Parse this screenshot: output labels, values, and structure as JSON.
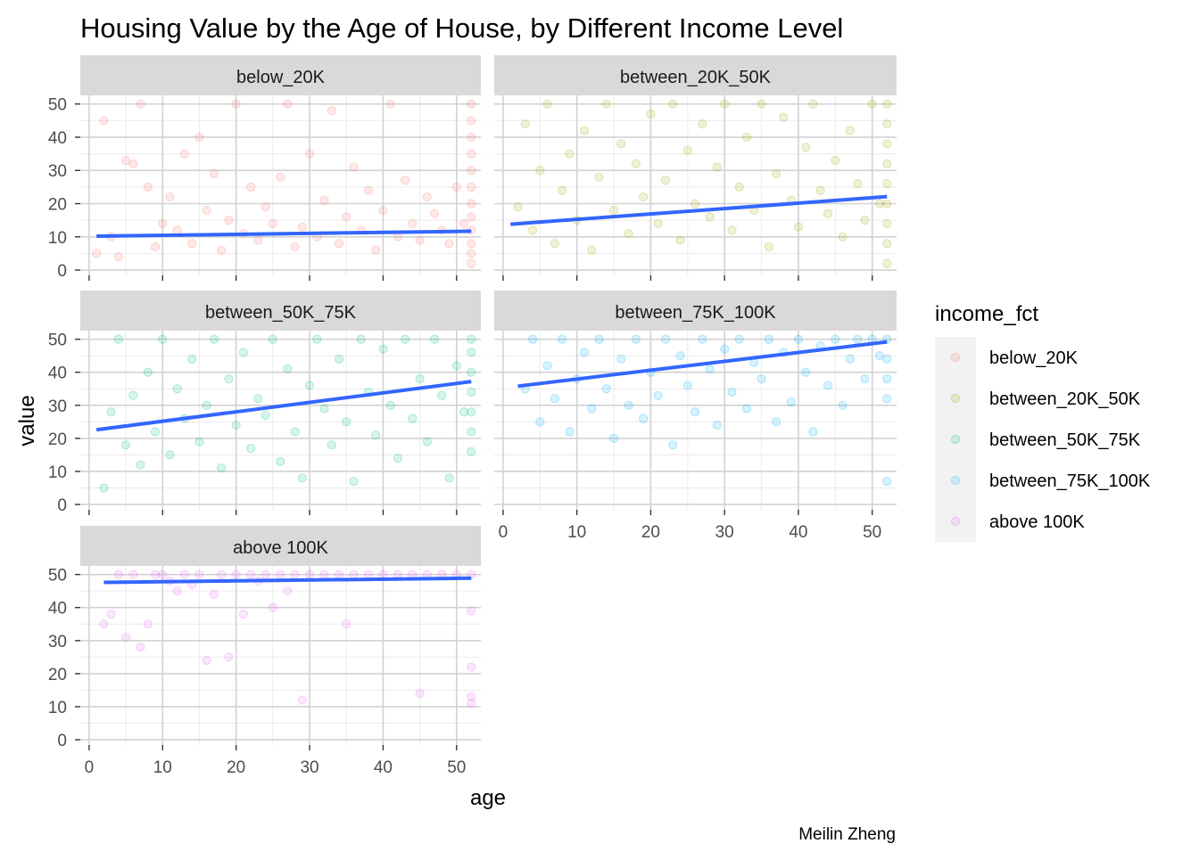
{
  "chart_data": {
    "type": "scatter",
    "title": "Housing Value by the Age of House, by Different Income Level",
    "xlabel": "age",
    "ylabel": "value",
    "caption": "Meilin Zheng",
    "xlim": [
      0,
      52
    ],
    "ylim": [
      0,
      50
    ],
    "x_ticks": [
      0,
      10,
      20,
      30,
      40,
      50
    ],
    "y_ticks": [
      0,
      10,
      20,
      30,
      40,
      50
    ],
    "grid": true,
    "facet_by": "income_fct",
    "legend": {
      "title": "income_fct",
      "position": "right",
      "entries": [
        {
          "label": "below_20K",
          "color": "#F8766D"
        },
        {
          "label": "between_20K_50K",
          "color": "#A3A500"
        },
        {
          "label": "between_50K_75K",
          "color": "#00BF7D"
        },
        {
          "label": "between_75K_100K",
          "color": "#00B0F6"
        },
        {
          "label": "above 100K",
          "color": "#E76BF3"
        }
      ]
    },
    "trend_color": "#3366FF",
    "panels": [
      {
        "strip": "below_20K",
        "color": "#F8766D",
        "trend_line": {
          "x": [
            1,
            52
          ],
          "y": [
            10.2,
            11.7
          ]
        },
        "points": [
          [
            1,
            5
          ],
          [
            2,
            45
          ],
          [
            3,
            10
          ],
          [
            4,
            4
          ],
          [
            5,
            33
          ],
          [
            6,
            32
          ],
          [
            7,
            50
          ],
          [
            8,
            25
          ],
          [
            9,
            7
          ],
          [
            10,
            14
          ],
          [
            11,
            22
          ],
          [
            12,
            12
          ],
          [
            13,
            35
          ],
          [
            14,
            8
          ],
          [
            15,
            40
          ],
          [
            16,
            18
          ],
          [
            17,
            29
          ],
          [
            18,
            6
          ],
          [
            19,
            15
          ],
          [
            20,
            50
          ],
          [
            21,
            11
          ],
          [
            22,
            25
          ],
          [
            23,
            9
          ],
          [
            24,
            19
          ],
          [
            25,
            14
          ],
          [
            26,
            28
          ],
          [
            27,
            50
          ],
          [
            28,
            7
          ],
          [
            29,
            13
          ],
          [
            30,
            35
          ],
          [
            31,
            10
          ],
          [
            32,
            21
          ],
          [
            33,
            48
          ],
          [
            34,
            8
          ],
          [
            35,
            16
          ],
          [
            36,
            31
          ],
          [
            37,
            12
          ],
          [
            38,
            24
          ],
          [
            39,
            6
          ],
          [
            40,
            18
          ],
          [
            41,
            50
          ],
          [
            42,
            10
          ],
          [
            43,
            27
          ],
          [
            44,
            14
          ],
          [
            45,
            9
          ],
          [
            46,
            22
          ],
          [
            47,
            17
          ],
          [
            48,
            12
          ],
          [
            49,
            8
          ],
          [
            50,
            25
          ],
          [
            51,
            14
          ],
          [
            52,
            2
          ],
          [
            52,
            5
          ],
          [
            52,
            8
          ],
          [
            52,
            12
          ],
          [
            52,
            16
          ],
          [
            52,
            20
          ],
          [
            52,
            25
          ],
          [
            52,
            30
          ],
          [
            52,
            35
          ],
          [
            52,
            40
          ],
          [
            52,
            45
          ],
          [
            52,
            50
          ]
        ]
      },
      {
        "strip": "between_20K_50K",
        "color": "#A3A500",
        "trend_line": {
          "x": [
            1,
            52
          ],
          "y": [
            13.8,
            22.1
          ]
        },
        "points": [
          [
            2,
            19
          ],
          [
            3,
            44
          ],
          [
            4,
            12
          ],
          [
            5,
            30
          ],
          [
            6,
            50
          ],
          [
            7,
            8
          ],
          [
            8,
            24
          ],
          [
            9,
            35
          ],
          [
            10,
            15
          ],
          [
            11,
            42
          ],
          [
            12,
            6
          ],
          [
            13,
            28
          ],
          [
            14,
            50
          ],
          [
            15,
            18
          ],
          [
            16,
            38
          ],
          [
            17,
            11
          ],
          [
            18,
            32
          ],
          [
            19,
            22
          ],
          [
            20,
            47
          ],
          [
            21,
            14
          ],
          [
            22,
            27
          ],
          [
            23,
            50
          ],
          [
            24,
            9
          ],
          [
            25,
            36
          ],
          [
            26,
            20
          ],
          [
            27,
            44
          ],
          [
            28,
            16
          ],
          [
            29,
            31
          ],
          [
            30,
            50
          ],
          [
            31,
            12
          ],
          [
            32,
            25
          ],
          [
            33,
            40
          ],
          [
            34,
            18
          ],
          [
            35,
            50
          ],
          [
            36,
            7
          ],
          [
            37,
            29
          ],
          [
            38,
            46
          ],
          [
            39,
            21
          ],
          [
            40,
            13
          ],
          [
            41,
            37
          ],
          [
            42,
            50
          ],
          [
            43,
            24
          ],
          [
            44,
            17
          ],
          [
            45,
            33
          ],
          [
            46,
            10
          ],
          [
            47,
            42
          ],
          [
            48,
            26
          ],
          [
            49,
            15
          ],
          [
            50,
            50
          ],
          [
            51,
            20
          ],
          [
            52,
            2
          ],
          [
            52,
            8
          ],
          [
            52,
            14
          ],
          [
            52,
            20
          ],
          [
            52,
            26
          ],
          [
            52,
            32
          ],
          [
            52,
            38
          ],
          [
            52,
            44
          ],
          [
            52,
            50
          ]
        ]
      },
      {
        "strip": "between_50K_75K",
        "color": "#00BF7D",
        "trend_line": {
          "x": [
            1,
            52
          ],
          "y": [
            22.6,
            37.2
          ]
        },
        "points": [
          [
            2,
            5
          ],
          [
            3,
            28
          ],
          [
            4,
            50
          ],
          [
            5,
            18
          ],
          [
            6,
            33
          ],
          [
            7,
            12
          ],
          [
            8,
            40
          ],
          [
            9,
            22
          ],
          [
            10,
            50
          ],
          [
            11,
            15
          ],
          [
            12,
            35
          ],
          [
            13,
            26
          ],
          [
            14,
            44
          ],
          [
            15,
            19
          ],
          [
            16,
            30
          ],
          [
            17,
            50
          ],
          [
            18,
            11
          ],
          [
            19,
            38
          ],
          [
            20,
            24
          ],
          [
            21,
            46
          ],
          [
            22,
            17
          ],
          [
            23,
            32
          ],
          [
            24,
            27
          ],
          [
            25,
            50
          ],
          [
            26,
            13
          ],
          [
            27,
            41
          ],
          [
            28,
            22
          ],
          [
            29,
            8
          ],
          [
            30,
            36
          ],
          [
            31,
            50
          ],
          [
            32,
            29
          ],
          [
            33,
            18
          ],
          [
            34,
            44
          ],
          [
            35,
            25
          ],
          [
            36,
            7
          ],
          [
            37,
            50
          ],
          [
            38,
            34
          ],
          [
            39,
            21
          ],
          [
            40,
            47
          ],
          [
            41,
            30
          ],
          [
            42,
            14
          ],
          [
            43,
            50
          ],
          [
            44,
            26
          ],
          [
            45,
            38
          ],
          [
            46,
            19
          ],
          [
            47,
            50
          ],
          [
            48,
            33
          ],
          [
            49,
            8
          ],
          [
            50,
            42
          ],
          [
            51,
            28
          ],
          [
            52,
            16
          ],
          [
            52,
            22
          ],
          [
            52,
            28
          ],
          [
            52,
            34
          ],
          [
            52,
            40
          ],
          [
            52,
            46
          ],
          [
            52,
            50
          ]
        ]
      },
      {
        "strip": "between_75K_100K",
        "color": "#00B0F6",
        "trend_line": {
          "x": [
            2,
            52
          ],
          "y": [
            35.8,
            49.2
          ]
        },
        "points": [
          [
            3,
            35
          ],
          [
            4,
            50
          ],
          [
            5,
            25
          ],
          [
            6,
            42
          ],
          [
            7,
            32
          ],
          [
            8,
            50
          ],
          [
            9,
            22
          ],
          [
            10,
            38
          ],
          [
            11,
            46
          ],
          [
            12,
            29
          ],
          [
            13,
            50
          ],
          [
            14,
            35
          ],
          [
            15,
            20
          ],
          [
            16,
            44
          ],
          [
            17,
            30
          ],
          [
            18,
            50
          ],
          [
            19,
            26
          ],
          [
            20,
            40
          ],
          [
            21,
            33
          ],
          [
            22,
            50
          ],
          [
            23,
            18
          ],
          [
            24,
            45
          ],
          [
            25,
            36
          ],
          [
            26,
            28
          ],
          [
            27,
            50
          ],
          [
            28,
            41
          ],
          [
            29,
            24
          ],
          [
            30,
            47
          ],
          [
            31,
            34
          ],
          [
            32,
            50
          ],
          [
            33,
            29
          ],
          [
            34,
            43
          ],
          [
            35,
            38
          ],
          [
            36,
            50
          ],
          [
            37,
            25
          ],
          [
            38,
            46
          ],
          [
            39,
            31
          ],
          [
            40,
            50
          ],
          [
            41,
            40
          ],
          [
            42,
            22
          ],
          [
            43,
            48
          ],
          [
            44,
            36
          ],
          [
            45,
            50
          ],
          [
            46,
            30
          ],
          [
            47,
            44
          ],
          [
            48,
            50
          ],
          [
            49,
            38
          ],
          [
            50,
            50
          ],
          [
            51,
            45
          ],
          [
            52,
            7
          ],
          [
            52,
            32
          ],
          [
            52,
            38
          ],
          [
            52,
            44
          ],
          [
            52,
            50
          ]
        ]
      },
      {
        "strip": "above 100K",
        "color": "#E76BF3",
        "trend_line": {
          "x": [
            2,
            52
          ],
          "y": [
            47.6,
            48.9
          ]
        },
        "points": [
          [
            2,
            35
          ],
          [
            3,
            38
          ],
          [
            4,
            50
          ],
          [
            5,
            31
          ],
          [
            6,
            50
          ],
          [
            7,
            28
          ],
          [
            8,
            35
          ],
          [
            9,
            50
          ],
          [
            10,
            50
          ],
          [
            11,
            48
          ],
          [
            12,
            45
          ],
          [
            13,
            50
          ],
          [
            14,
            47
          ],
          [
            15,
            50
          ],
          [
            16,
            24
          ],
          [
            17,
            44
          ],
          [
            18,
            50
          ],
          [
            19,
            25
          ],
          [
            20,
            50
          ],
          [
            21,
            38
          ],
          [
            22,
            50
          ],
          [
            23,
            48
          ],
          [
            24,
            50
          ],
          [
            25,
            40
          ],
          [
            26,
            50
          ],
          [
            27,
            45
          ],
          [
            28,
            50
          ],
          [
            29,
            12
          ],
          [
            30,
            50
          ],
          [
            32,
            50
          ],
          [
            34,
            50
          ],
          [
            35,
            35
          ],
          [
            36,
            50
          ],
          [
            38,
            50
          ],
          [
            40,
            50
          ],
          [
            42,
            50
          ],
          [
            44,
            50
          ],
          [
            45,
            14
          ],
          [
            46,
            50
          ],
          [
            48,
            50
          ],
          [
            50,
            50
          ],
          [
            52,
            11
          ],
          [
            52,
            13
          ],
          [
            52,
            22
          ],
          [
            52,
            39
          ],
          [
            52,
            50
          ]
        ]
      }
    ]
  }
}
